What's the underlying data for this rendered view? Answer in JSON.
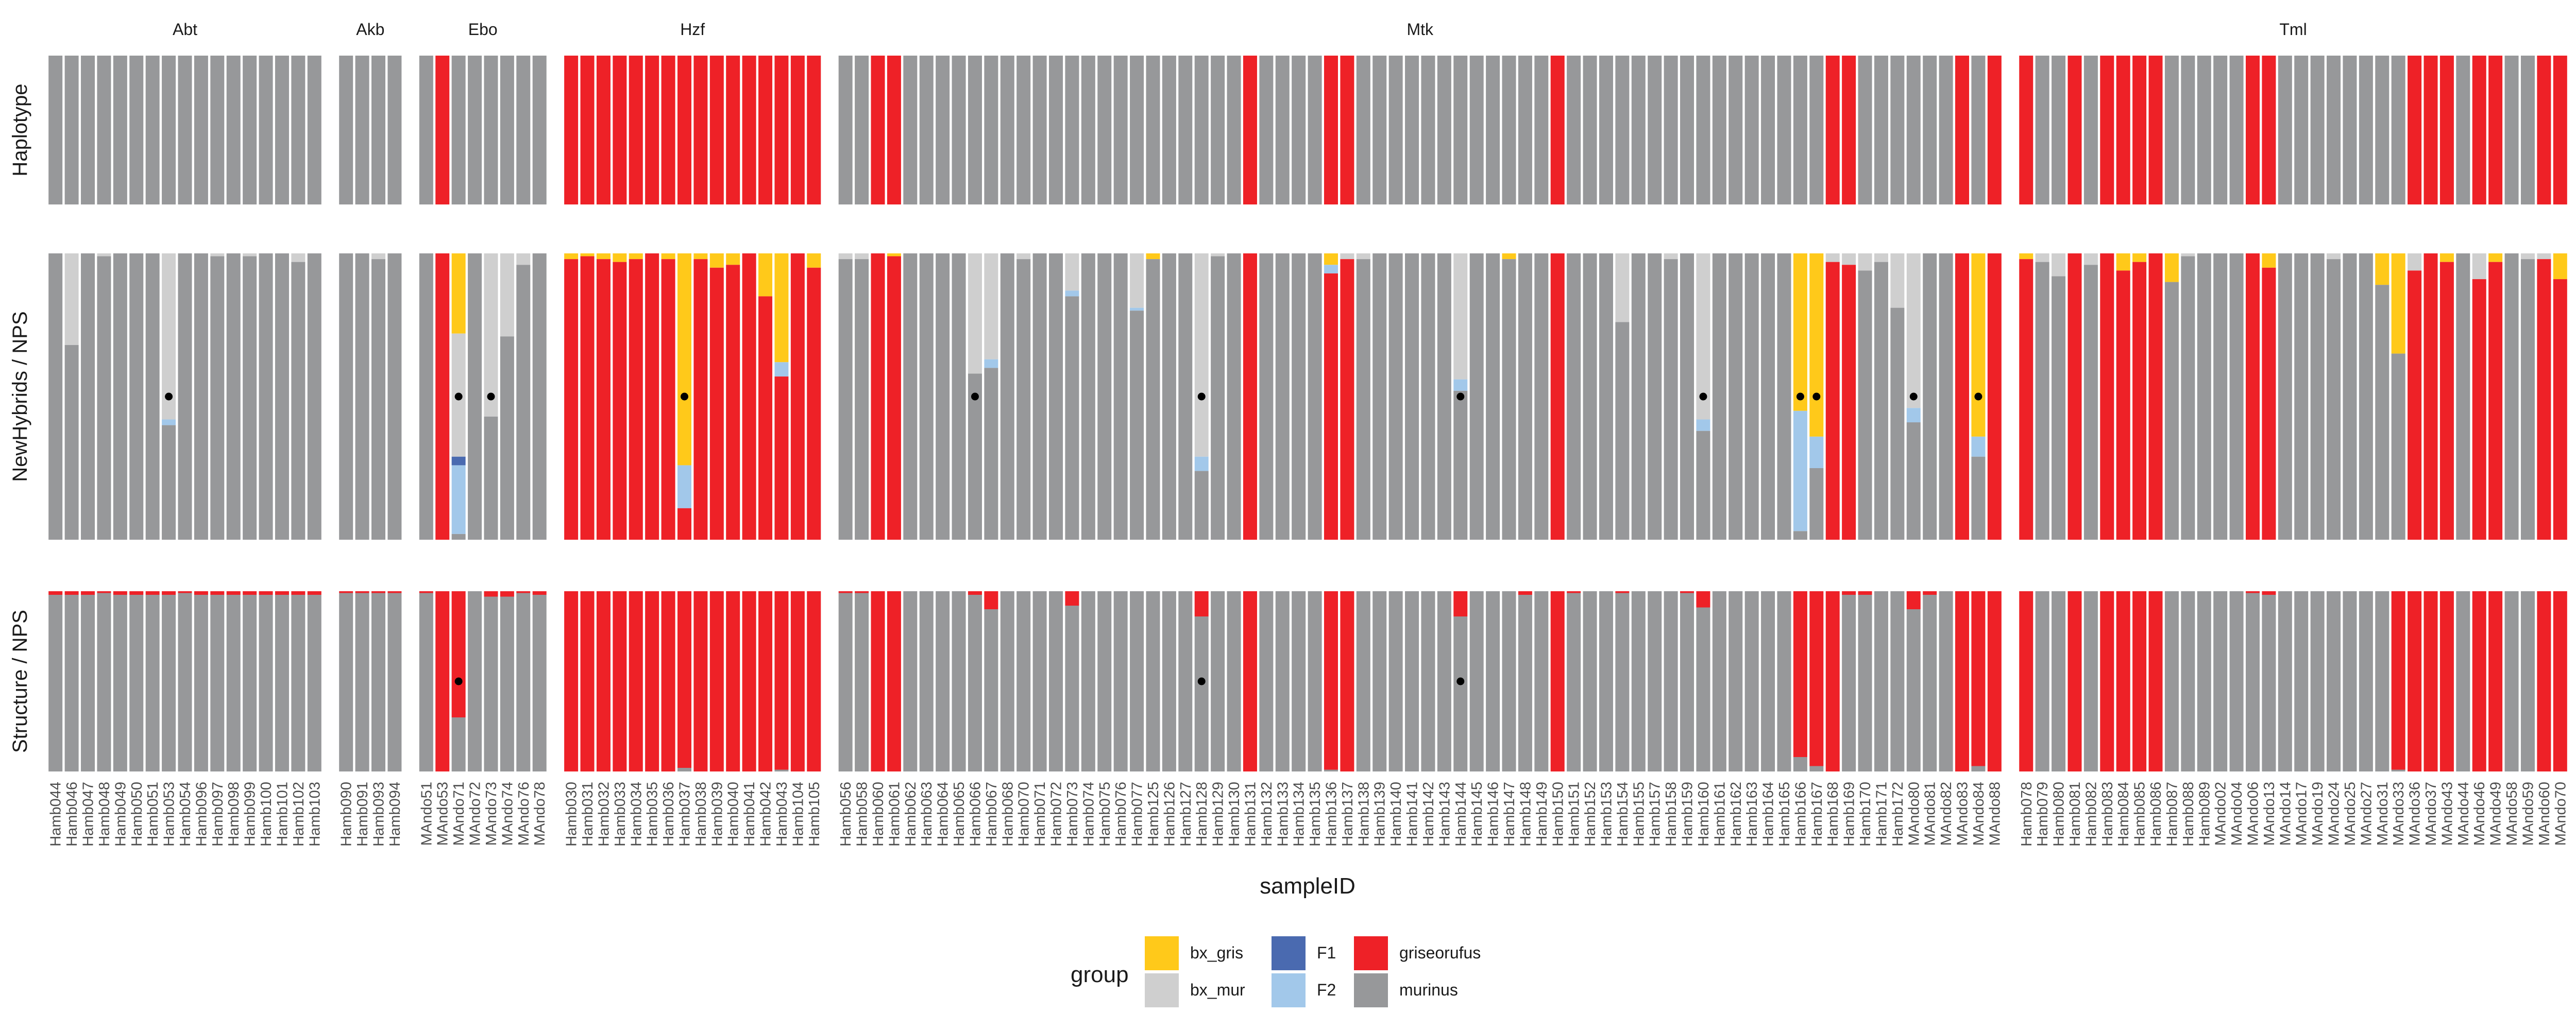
{
  "chart_data": {
    "type": "bar",
    "stacked": true,
    "xlabel": "sampleID",
    "ylim": [
      0,
      1
    ],
    "grid": false,
    "legend": {
      "title": "group",
      "placement": "bottom",
      "items": [
        {
          "key": "bx_gris",
          "label": "bx_gris"
        },
        {
          "key": "bx_mur",
          "label": "bx_mur"
        },
        {
          "key": "F1",
          "label": "F1"
        },
        {
          "key": "F2",
          "label": "F2"
        },
        {
          "key": "griseorufus",
          "label": "griseorufus"
        },
        {
          "key": "murinus",
          "label": "murinus"
        }
      ]
    },
    "colors": {
      "bx_gris": "#FFC91A",
      "bx_mur": "#CFCFCF",
      "F1": "#4A6AB0",
      "F2": "#A2C8EA",
      "griseorufus": "#EE2127",
      "murinus": "#97989A"
    },
    "stack_order_top_to_bottom": [
      "bx_gris",
      "bx_mur",
      "F1",
      "F2",
      "griseorufus",
      "murinus"
    ],
    "facet_rows": [
      "Haplotype",
      "NewHybrids / NPS",
      "Structure / NPS"
    ],
    "facet_columns": [
      {
        "name": "Abt",
        "samples": [
          "Hamb044",
          "Hamb046",
          "Hamb047",
          "Hamb048",
          "Hamb049",
          "Hamb050",
          "Hamb051",
          "Hamb053",
          "Hamb054",
          "Hamb096",
          "Hamb097",
          "Hamb098",
          "Hamb099",
          "Hamb100",
          "Hamb101",
          "Hamb102",
          "Hamb103"
        ]
      },
      {
        "name": "Akb",
        "samples": [
          "Hamb090",
          "Hamb091",
          "Hamb093",
          "Hamb094"
        ]
      },
      {
        "name": "Ebo",
        "samples": [
          "MAndo51",
          "MAndo53",
          "MAndo71",
          "MAndo72",
          "MAndo73",
          "MAndo74",
          "MAndo76",
          "MAndo78"
        ]
      },
      {
        "name": "Hzf",
        "samples": [
          "Hamb030",
          "Hamb031",
          "Hamb032",
          "Hamb033",
          "Hamb034",
          "Hamb035",
          "Hamb036",
          "Hamb037",
          "Hamb038",
          "Hamb039",
          "Hamb040",
          "Hamb041",
          "Hamb042",
          "Hamb043",
          "Hamb104",
          "Hamb105"
        ]
      },
      {
        "name": "Mtk",
        "samples": [
          "Hamb056",
          "Hamb058",
          "Hamb060",
          "Hamb061",
          "Hamb062",
          "Hamb063",
          "Hamb064",
          "Hamb065",
          "Hamb066",
          "Hamb067",
          "Hamb068",
          "Hamb070",
          "Hamb071",
          "Hamb072",
          "Hamb073",
          "Hamb074",
          "Hamb075",
          "Hamb076",
          "Hamb077",
          "Hamb125",
          "Hamb126",
          "Hamb127",
          "Hamb128",
          "Hamb129",
          "Hamb130",
          "Hamb131",
          "Hamb132",
          "Hamb133",
          "Hamb134",
          "Hamb135",
          "Hamb136",
          "Hamb137",
          "Hamb138",
          "Hamb139",
          "Hamb140",
          "Hamb141",
          "Hamb142",
          "Hamb143",
          "Hamb144",
          "Hamb145",
          "Hamb146",
          "Hamb147",
          "Hamb148",
          "Hamb149",
          "Hamb150",
          "Hamb151",
          "Hamb152",
          "Hamb153",
          "Hamb154",
          "Hamb155",
          "Hamb157",
          "Hamb158",
          "Hamb159",
          "Hamb160",
          "Hamb161",
          "Hamb162",
          "Hamb163",
          "Hamb164",
          "Hamb165",
          "Hamb166",
          "Hamb167",
          "Hamb168",
          "Hamb169",
          "Hamb170",
          "Hamb171",
          "Hamb172",
          "MAndo80",
          "MAndo81",
          "MAndo82",
          "MAndo83",
          "MAndo84",
          "MAndo88"
        ]
      },
      {
        "name": "Tml",
        "samples": [
          "Hamb078",
          "Hamb079",
          "Hamb080",
          "Hamb081",
          "Hamb082",
          "Hamb083",
          "Hamb084",
          "Hamb085",
          "Hamb086",
          "Hamb087",
          "Hamb088",
          "Hamb089",
          "MAndo02",
          "MAndo04",
          "MAndo06",
          "MAndo13",
          "MAndo14",
          "MAndo17",
          "MAndo19",
          "MAndo24",
          "MAndo25",
          "MAndo27",
          "MAndo31",
          "MAndo33",
          "MAndo36",
          "MAndo37",
          "MAndo43",
          "MAndo44",
          "MAndo46",
          "MAndo49",
          "MAndo58",
          "MAndo59",
          "MAndo60",
          "MAndo70"
        ]
      }
    ],
    "haplotype": {
      "Abt": "MMMMMMMMMMMMMMMMM",
      "Akb": "MMMM",
      "Ebo": "MGMMMMMM",
      "Hzf": "GGGGGGGGGGGGGGGG",
      "Mtk": "MMGGMMMMMMMMMMMMMMMMMMMMMGMMMMGGMMMMMMMMMMMMGMMMMMMMMMMMMMMMMGGMMMMMMGMG",
      "Tml": "GMMGMGGGGMMMMMGGMMMMMMMMGGGMGGMMGG"
    },
    "proportion_overrides": {
      "NewHybrids / NPS": {
        "Abt": {
          "1": {
            "bx_mur": 0.32
          },
          "3": {
            "bx_mur": 0.01
          },
          "7": {
            "bx_mur": 0.58,
            "F2": 0.02
          },
          "10": {
            "bx_mur": 0.01
          },
          "12": {
            "bx_mur": 0.01
          },
          "15": {
            "bx_mur": 0.03
          }
        },
        "Akb": {
          "2": {
            "bx_mur": 0.02
          }
        },
        "Ebo": {
          "2": {
            "bx_gris": 0.28,
            "bx_mur": 0.43,
            "F1": 0.03,
            "F2": 0.24
          },
          "4": {
            "bx_mur": 0.57
          },
          "5": {
            "bx_mur": 0.29
          },
          "6": {
            "bx_mur": 0.04
          }
        },
        "Hzf": {
          "0": {
            "bx_gris": 0.02
          },
          "1": {
            "bx_gris": 0.01
          },
          "2": {
            "bx_gris": 0.02
          },
          "3": {
            "bx_gris": 0.03
          },
          "4": {
            "bx_gris": 0.02
          },
          "6": {
            "bx_gris": 0.02
          },
          "7": {
            "bx_gris": 0.74,
            "F2": 0.15
          },
          "8": {
            "bx_gris": 0.02
          },
          "9": {
            "bx_gris": 0.05
          },
          "10": {
            "bx_gris": 0.04
          },
          "12": {
            "bx_gris": 0.15
          },
          "13": {
            "bx_gris": 0.38,
            "F2": 0.05
          },
          "15": {
            "bx_gris": 0.05
          }
        },
        "Mtk": {
          "0": {
            "bx_mur": 0.02
          },
          "1": {
            "bx_mur": 0.02
          },
          "3": {
            "bx_gris": 0.01
          },
          "8": {
            "bx_mur": 0.42
          },
          "9": {
            "bx_mur": 0.37,
            "F2": 0.03
          },
          "11": {
            "bx_mur": 0.02
          },
          "14": {
            "bx_mur": 0.13,
            "F2": 0.02
          },
          "18": {
            "bx_mur": 0.19,
            "F2": 0.01
          },
          "19": {
            "bx_gris": 0.02
          },
          "22": {
            "bx_mur": 0.71,
            "F2": 0.05
          },
          "23": {
            "bx_mur": 0.01
          },
          "30": {
            "bx_gris": 0.04,
            "F2": 0.03
          },
          "31": {
            "bx_mur": 0.02
          },
          "32": {
            "bx_mur": 0.02
          },
          "38": {
            "bx_mur": 0.44,
            "F2": 0.04
          },
          "41": {
            "bx_gris": 0.02
          },
          "48": {
            "bx_mur": 0.24
          },
          "51": {
            "bx_mur": 0.02
          },
          "53": {
            "bx_mur": 0.58,
            "F2": 0.04
          },
          "59": {
            "bx_gris": 0.55,
            "F2": 0.42
          },
          "60": {
            "bx_gris": 0.64,
            "F2": 0.11
          },
          "61": {
            "bx_mur": 0.03
          },
          "62": {
            "bx_mur": 0.04
          },
          "63": {
            "bx_mur": 0.06
          },
          "64": {
            "bx_mur": 0.03
          },
          "65": {
            "bx_mur": 0.19
          },
          "66": {
            "bx_mur": 0.54,
            "F2": 0.05
          },
          "70": {
            "bx_gris": 0.64,
            "F2": 0.07
          }
        },
        "Tml": {
          "0": {
            "bx_gris": 0.02
          },
          "1": {
            "bx_mur": 0.03
          },
          "2": {
            "bx_mur": 0.08
          },
          "4": {
            "bx_mur": 0.04
          },
          "6": {
            "bx_gris": 0.06
          },
          "7": {
            "bx_gris": 0.03
          },
          "9": {
            "bx_gris": 0.1
          },
          "10": {
            "bx_mur": 0.01
          },
          "15": {
            "bx_gris": 0.05
          },
          "19": {
            "bx_mur": 0.02
          },
          "22": {
            "bx_gris": 0.11
          },
          "23": {
            "bx_gris": 0.35
          },
          "24": {
            "bx_mur": 0.06
          },
          "26": {
            "bx_gris": 0.03
          },
          "28": {
            "bx_mur": 0.09
          },
          "29": {
            "bx_gris": 0.03
          },
          "31": {
            "bx_mur": 0.02
          },
          "32": {
            "bx_mur": 0.02
          },
          "33": {
            "bx_gris": 0.09
          }
        }
      },
      "Structure / NPS": {
        "Abt": {
          "0": 0.02,
          "1": 0.02,
          "2": 0.02,
          "3": 0.01,
          "4": 0.02,
          "5": 0.02,
          "6": 0.02,
          "7": 0.02,
          "8": 0.01,
          "9": 0.02,
          "10": 0.02,
          "11": 0.02,
          "12": 0.02,
          "13": 0.02,
          "14": 0.02,
          "15": 0.02,
          "16": 0.02
        },
        "Akb": {
          "0": 0.01,
          "1": 0.01,
          "2": 0.01,
          "3": 0.01
        },
        "Ebo": {
          "0": 0.01,
          "2": 0.7,
          "4": 0.03,
          "5": 0.03,
          "6": 0.01,
          "7": 0.02
        },
        "Hzf": {
          "7": 0.98,
          "13": 0.99
        },
        "Mtk": {
          "0": 0.01,
          "1": 0.01,
          "8": 0.02,
          "9": 0.1,
          "14": 0.08,
          "22": 0.14,
          "30": 0.99,
          "38": 0.14,
          "42": 0.02,
          "45": 0.01,
          "48": 0.01,
          "52": 0.01,
          "53": 0.09,
          "59": 0.92,
          "60": 0.97,
          "62": 0.02,
          "63": 0.02,
          "66": 0.1,
          "67": 0.02,
          "70": 0.97
        },
        "Tml": {
          "14": 0.01,
          "15": 0.02,
          "23": 0.99
        }
      }
    },
    "point_markers": {
      "NewHybrids / NPS": {
        "Abt": [
          7
        ],
        "Ebo": [
          2,
          4
        ],
        "Hzf": [
          7
        ],
        "Mtk": [
          8,
          22,
          38,
          53,
          59,
          60,
          66,
          70
        ]
      },
      "Structure / NPS": {
        "Ebo": [
          2
        ],
        "Mtk": [
          22,
          38
        ]
      }
    }
  }
}
